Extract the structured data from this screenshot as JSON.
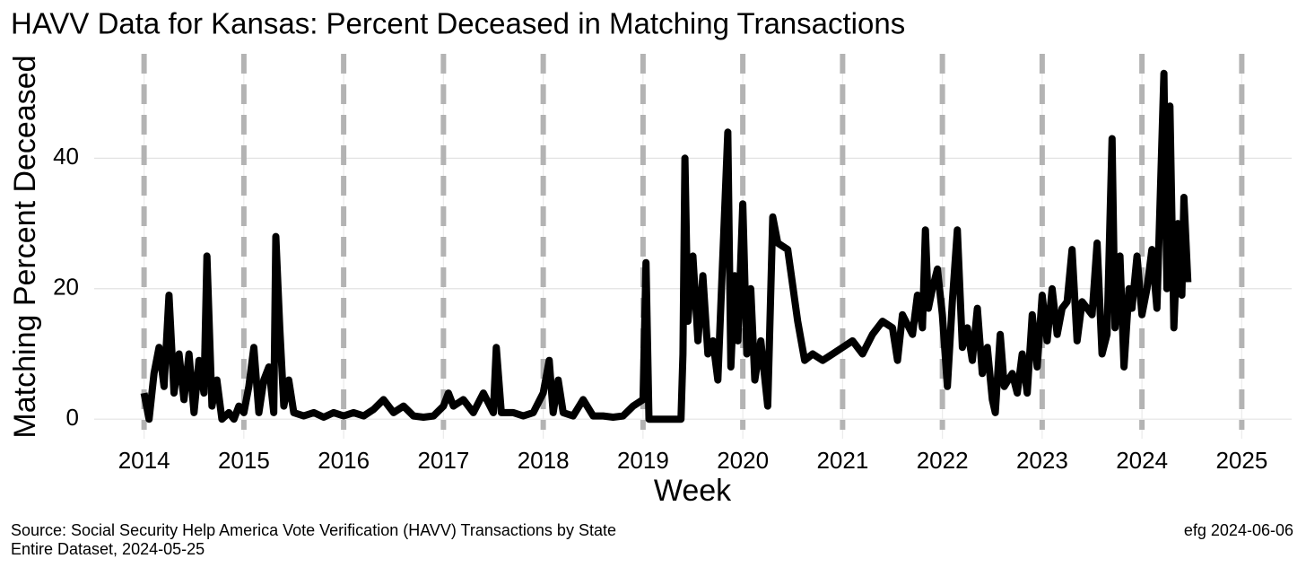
{
  "chart_data": {
    "type": "line",
    "title": "HAVV Data for Kansas:  Percent Deceased in Matching Transactions",
    "xlabel": "Week",
    "ylabel": "Matching Percent Deceased",
    "source": "Source:  Social Security Help America Vote Verification (HAVV) Transactions by State",
    "source2": "Entire Dataset, 2024-05-25",
    "credit": "efg 2024-06-06",
    "xlim": [
      2013.5,
      2025.5
    ],
    "ylim": [
      -3,
      56
    ],
    "xticks": [
      2014,
      2015,
      2016,
      2017,
      2018,
      2019,
      2020,
      2021,
      2022,
      2023,
      2024,
      2025
    ],
    "yticks": [
      0,
      20,
      40
    ],
    "grid": true,
    "year_lines": true,
    "series": [
      {
        "name": "Kansas",
        "color": "#000000",
        "x": [
          2014.0,
          2014.05,
          2014.1,
          2014.15,
          2014.2,
          2014.25,
          2014.3,
          2014.35,
          2014.4,
          2014.45,
          2014.5,
          2014.55,
          2014.6,
          2014.63,
          2014.68,
          2014.73,
          2014.78,
          2014.85,
          2014.9,
          2014.95,
          2015.0,
          2015.05,
          2015.1,
          2015.15,
          2015.2,
          2015.25,
          2015.3,
          2015.32,
          2015.36,
          2015.4,
          2015.45,
          2015.5,
          2015.6,
          2015.7,
          2015.8,
          2015.9,
          2016.0,
          2016.1,
          2016.2,
          2016.3,
          2016.4,
          2016.5,
          2016.6,
          2016.7,
          2016.8,
          2016.9,
          2017.0,
          2017.05,
          2017.1,
          2017.2,
          2017.3,
          2017.4,
          2017.5,
          2017.53,
          2017.58,
          2017.7,
          2017.8,
          2017.9,
          2018.0,
          2018.06,
          2018.1,
          2018.15,
          2018.2,
          2018.3,
          2018.4,
          2018.5,
          2018.6,
          2018.7,
          2018.8,
          2018.9,
          2019.0,
          2019.03,
          2019.06,
          2019.2,
          2019.3,
          2019.38,
          2019.4,
          2019.42,
          2019.45,
          2019.5,
          2019.55,
          2019.6,
          2019.65,
          2019.7,
          2019.75,
          2019.85,
          2019.88,
          2019.92,
          2019.95,
          2020.0,
          2020.04,
          2020.08,
          2020.12,
          2020.18,
          2020.25,
          2020.3,
          2020.35,
          2020.45,
          2020.55,
          2020.62,
          2020.7,
          2020.8,
          2020.9,
          2021.0,
          2021.1,
          2021.2,
          2021.3,
          2021.4,
          2021.5,
          2021.55,
          2021.6,
          2021.7,
          2021.75,
          2021.8,
          2021.83,
          2021.86,
          2021.9,
          2021.95,
          2022.0,
          2022.05,
          2022.1,
          2022.15,
          2022.2,
          2022.25,
          2022.3,
          2022.35,
          2022.4,
          2022.45,
          2022.5,
          2022.53,
          2022.58,
          2022.62,
          2022.7,
          2022.75,
          2022.8,
          2022.85,
          2022.9,
          2022.95,
          2023.0,
          2023.05,
          2023.1,
          2023.15,
          2023.2,
          2023.25,
          2023.3,
          2023.35,
          2023.4,
          2023.5,
          2023.55,
          2023.6,
          2023.65,
          2023.7,
          2023.73,
          2023.78,
          2023.82,
          2023.87,
          2023.9,
          2023.95,
          2024.0,
          2024.05,
          2024.1,
          2024.15,
          2024.22,
          2024.25,
          2024.28,
          2024.32,
          2024.36,
          2024.4,
          2024.42,
          2024.46
        ],
        "values": [
          4,
          0,
          7,
          11,
          5,
          19,
          4,
          10,
          3,
          10,
          1,
          9,
          4,
          25,
          2,
          6,
          0,
          1,
          0,
          2,
          1,
          5,
          11,
          1,
          6,
          8,
          1,
          28,
          14,
          2,
          6,
          1,
          0.5,
          1,
          0.3,
          1,
          0.5,
          1,
          0.5,
          1.5,
          3,
          1,
          2,
          0.5,
          0.3,
          0.5,
          2,
          4,
          2,
          3,
          1,
          4,
          1,
          11,
          1,
          1,
          0.5,
          1,
          4,
          9,
          1,
          6,
          1,
          0.5,
          3,
          0.5,
          0.5,
          0.3,
          0.5,
          2,
          3,
          24,
          0,
          0,
          0,
          0,
          10,
          40,
          15,
          25,
          12,
          22,
          10,
          12,
          6,
          44,
          8,
          22,
          12,
          33,
          10,
          20,
          6,
          12,
          2,
          31,
          27,
          26,
          15,
          9,
          10,
          9,
          10,
          11,
          12,
          10,
          13,
          15,
          14,
          9,
          16,
          13,
          19,
          14,
          29,
          17,
          20,
          23,
          16,
          5,
          18,
          29,
          11,
          14,
          9,
          17,
          7,
          11,
          3,
          1,
          13,
          5,
          7,
          4,
          10,
          4,
          16,
          8,
          19,
          12,
          20,
          13,
          17,
          18,
          26,
          12,
          18,
          16,
          27,
          10,
          13,
          43,
          14,
          25,
          8,
          20,
          17,
          25,
          16,
          20,
          26,
          17,
          53,
          20,
          48,
          14,
          30,
          19,
          34,
          21
        ]
      }
    ]
  }
}
